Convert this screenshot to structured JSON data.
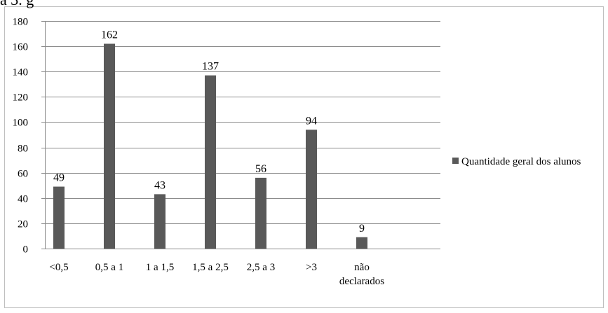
{
  "caption_fragment": "a 3.                  g",
  "chart_data": {
    "type": "bar",
    "categories": [
      "<0,5",
      "0,5 a 1",
      "1  a 1,5",
      "1,5 a 2,5",
      "2,5 a 3",
      ">3",
      "não declarados"
    ],
    "category_lines": [
      [
        "<0,5"
      ],
      [
        "0,5 a 1"
      ],
      [
        "1  a 1,5"
      ],
      [
        "1,5 a 2,5"
      ],
      [
        "2,5 a 3"
      ],
      [
        ">3"
      ],
      [
        "não",
        "declarados"
      ]
    ],
    "series": [
      {
        "name": "Quantidade geral dos alunos",
        "values": [
          49,
          162,
          43,
          137,
          56,
          94,
          9
        ],
        "color": "#595959"
      }
    ],
    "data_labels": [
      "49",
      "162",
      "43",
      "137",
      "56",
      "94",
      "9"
    ],
    "yticks": [
      0,
      20,
      40,
      60,
      80,
      100,
      120,
      140,
      160,
      180
    ],
    "ylim": [
      0,
      180
    ],
    "grid": true,
    "legend": "right",
    "title": "",
    "xlabel": "",
    "ylabel": ""
  }
}
